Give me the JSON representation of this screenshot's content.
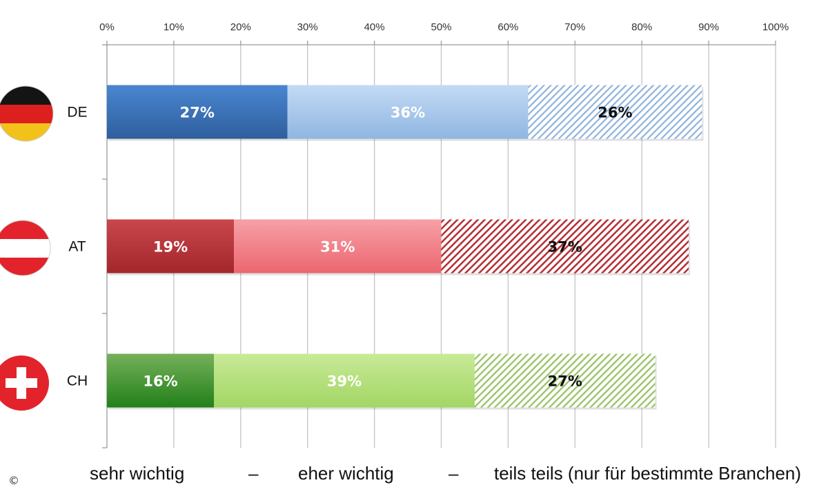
{
  "chart_data": {
    "type": "bar",
    "orientation": "horizontal",
    "stacked": true,
    "categories": [
      "DE",
      "AT",
      "CH"
    ],
    "series": [
      {
        "name": "sehr wichtig",
        "values": [
          27,
          19,
          16
        ]
      },
      {
        "name": "eher wichtig",
        "values": [
          36,
          31,
          39
        ]
      },
      {
        "name": "teils teils (nur für bestimmte Branchen)",
        "values": [
          26,
          37,
          27
        ]
      }
    ],
    "data_labels": [
      [
        "27%",
        "36%",
        "26%"
      ],
      [
        "19%",
        "31%",
        "37%"
      ],
      [
        "16%",
        "39%",
        "27%"
      ]
    ],
    "xlim": [
      0,
      100
    ],
    "x_ticks": [
      "0%",
      "10%",
      "20%",
      "30%",
      "40%",
      "50%",
      "60%",
      "70%",
      "80%",
      "90%",
      "100%"
    ],
    "x_axis_position": "top",
    "grid": true,
    "legend_placement": "bottom",
    "legend": {
      "items": [
        "sehr wichtig",
        "eher wichtig",
        "teils teils (nur für bestimmte Branchen)"
      ],
      "separator": "–"
    },
    "colors": {
      "DE": [
        "#3a73bd",
        "#a9c9ee",
        "#9fbfe0"
      ],
      "AT": [
        "#b83237",
        "#f08088",
        "#b83237"
      ],
      "CH": [
        "#3e9a2a",
        "#b6e07c",
        "#8fbc50"
      ]
    },
    "label_colors": {
      "DE": [
        "#ffffff",
        "#ffffff",
        "#111111"
      ],
      "AT": [
        "#ffffff",
        "#ffffff",
        "#111111"
      ],
      "CH": [
        "#ffffff",
        "#ffffff",
        "#111111"
      ]
    },
    "flags": [
      "germany-flag-icon",
      "austria-flag-icon",
      "switzerland-flag-icon"
    ]
  },
  "copyright_symbol": "©"
}
